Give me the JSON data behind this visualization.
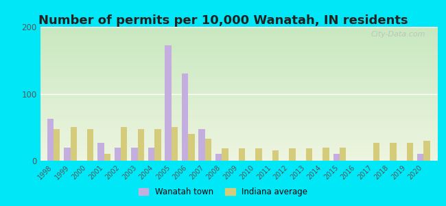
{
  "title": "Number of permits per 10,000 Wanatah, IN residents",
  "years": [
    1998,
    1999,
    2000,
    2001,
    2002,
    2003,
    2004,
    2005,
    2006,
    2007,
    2008,
    2009,
    2010,
    2011,
    2012,
    2013,
    2014,
    2015,
    2016,
    2017,
    2018,
    2019,
    2020
  ],
  "wanatah": [
    63,
    20,
    0,
    27,
    20,
    20,
    20,
    172,
    130,
    47,
    10,
    0,
    0,
    0,
    0,
    0,
    0,
    10,
    0,
    0,
    0,
    0,
    10
  ],
  "indiana": [
    47,
    50,
    47,
    10,
    50,
    47,
    47,
    50,
    40,
    33,
    18,
    18,
    18,
    15,
    18,
    18,
    20,
    20,
    0,
    27,
    27,
    27,
    30
  ],
  "wanatah_color": "#c4aee0",
  "indiana_color": "#d4cc7a",
  "background_outer": "#00e8f8",
  "grad_top": "#c8e8c0",
  "grad_bottom": "#eef5e0",
  "ylim": [
    0,
    200
  ],
  "yticks": [
    0,
    100,
    200
  ],
  "title_fontsize": 13,
  "bar_width": 0.38,
  "watermark": "City-Data.com",
  "legend_wanatah": "Wanatah town",
  "legend_indiana": "Indiana average"
}
